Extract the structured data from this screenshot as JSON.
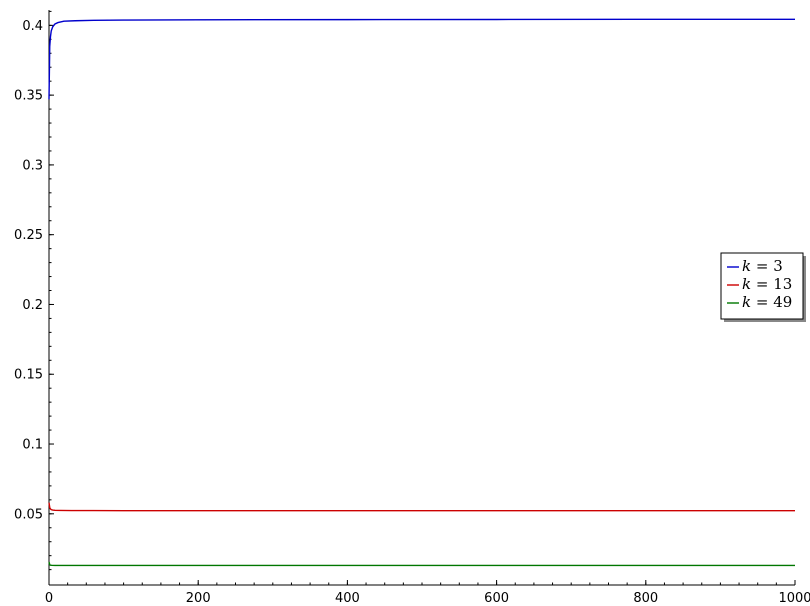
{
  "chart_data": {
    "type": "line",
    "title": "",
    "xlabel": "",
    "ylabel": "",
    "xlim": [
      0,
      1000
    ],
    "ylim": [
      0.004,
      0.411
    ],
    "x_ticks": [
      0,
      200,
      400,
      600,
      800,
      1000
    ],
    "x_tick_labels": [
      "0",
      "200",
      "400",
      "600",
      "800",
      "1000"
    ],
    "y_ticks": [
      0.05,
      0.1,
      0.15,
      0.2,
      0.25,
      0.3,
      0.35,
      0.4
    ],
    "y_tick_labels": [
      "0.05",
      "0.1",
      "0.15",
      "0.2",
      "0.25",
      "0.3",
      "0.35",
      "0.4"
    ],
    "grid": false,
    "legend_position": "center-right",
    "series": [
      {
        "name": "k = 3",
        "label_var": "k",
        "label_value": "3",
        "color": "#0000cc",
        "x": [
          0,
          1,
          2,
          3,
          5,
          8,
          12,
          20,
          35,
          60,
          100,
          200,
          400,
          600,
          800,
          1000
        ],
        "y": [
          0.347,
          0.385,
          0.392,
          0.396,
          0.399,
          0.401,
          0.402,
          0.403,
          0.4033,
          0.4036,
          0.4038,
          0.404,
          0.4041,
          0.4042,
          0.4043,
          0.4043
        ]
      },
      {
        "name": "k = 13",
        "label_var": "k",
        "label_value": "13",
        "color": "#cc0000",
        "x": [
          0,
          1,
          2,
          3,
          5,
          8,
          15,
          30,
          60,
          100,
          200,
          400,
          600,
          800,
          1000
        ],
        "y": [
          0.058,
          0.0545,
          0.0535,
          0.053,
          0.0527,
          0.0525,
          0.0524,
          0.0523,
          0.0523,
          0.0522,
          0.0522,
          0.0522,
          0.0522,
          0.0522,
          0.0522
        ]
      },
      {
        "name": "k = 49",
        "label_var": "k",
        "label_value": "49",
        "color": "#007700",
        "x": [
          0,
          1,
          2,
          4,
          8,
          20,
          50,
          100,
          200,
          400,
          600,
          800,
          1000
        ],
        "y": [
          0.0155,
          0.0135,
          0.0132,
          0.0131,
          0.013,
          0.013,
          0.013,
          0.013,
          0.013,
          0.013,
          0.013,
          0.013,
          0.013
        ]
      }
    ]
  }
}
